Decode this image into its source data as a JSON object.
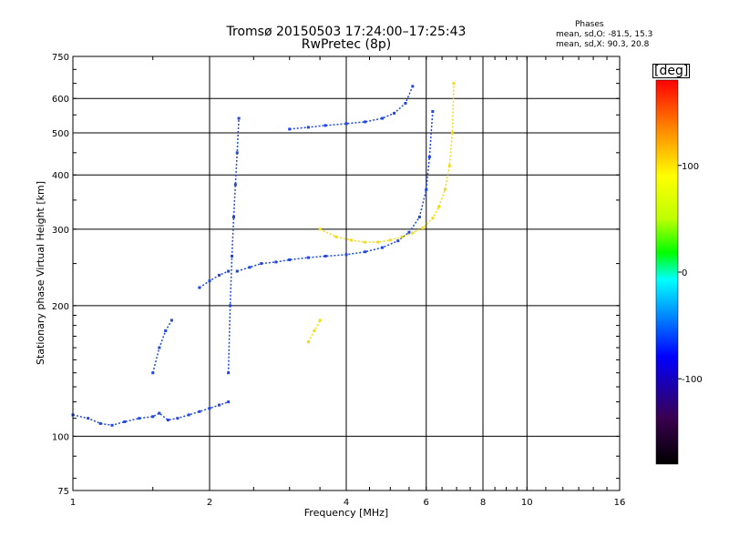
{
  "header": {
    "title_line1": "Tromsø 20150503 17:24:00–17:25:43",
    "title_line2": "RwPretec (8p)",
    "phases_title": "Phases",
    "phases_line1": "mean, sd,O: -81.5, 15.3",
    "phases_line2": "mean, sd,X:  90.3, 20.8"
  },
  "chart_data": {
    "type": "scatter",
    "title": "Tromsø 20150503 17:24:00–17:25:43",
    "subtitle": "RwPretec (8p)",
    "xlabel": "Frequency [MHz]",
    "ylabel": "Stationary phase Virtual Height [km]",
    "x_scale": "log",
    "y_scale": "log",
    "xlim": [
      1,
      16
    ],
    "ylim": [
      75,
      750
    ],
    "x_ticks": [
      1,
      2,
      4,
      6,
      8,
      10,
      16
    ],
    "x_tick_labels": [
      "1",
      "2",
      "4",
      "6",
      "8",
      "10",
      "16"
    ],
    "y_ticks": [
      75,
      100,
      200,
      300,
      400,
      500,
      600,
      750
    ],
    "y_tick_labels": [
      "75",
      "100",
      "200",
      "300",
      "400",
      "500",
      "600",
      "750"
    ],
    "grid": true,
    "colorbar": {
      "label": "[deg]",
      "range": [
        -180,
        180
      ],
      "ticks": [
        -100,
        0,
        100
      ],
      "tick_labels": [
        "-100",
        "0",
        "100"
      ],
      "colors": [
        "#000000",
        "#3a0050",
        "#0000ff",
        "#0080ff",
        "#00ffff",
        "#00ff00",
        "#c0ff00",
        "#ffff00",
        "#ff8000",
        "#ff0000"
      ]
    },
    "series": [
      {
        "name": "O",
        "color": "#1e46e6",
        "segments": [
          {
            "x": [
              1.0,
              1.08,
              1.15,
              1.22,
              1.3,
              1.4,
              1.5,
              1.55,
              1.62,
              1.7,
              1.8,
              1.9,
              2.0,
              2.1,
              2.2
            ],
            "y": [
              112,
              110,
              107,
              106,
              108,
              110,
              111,
              113,
              109,
              110,
              112,
              114,
              116,
              118,
              120
            ]
          },
          {
            "x": [
              2.3,
              2.45,
              2.6,
              2.8,
              3.0,
              3.3,
              3.6,
              4.0,
              4.4,
              4.8,
              5.2,
              5.5,
              5.8,
              6.0,
              6.1,
              6.2
            ],
            "y": [
              240,
              245,
              250,
              252,
              255,
              258,
              260,
              262,
              266,
              272,
              282,
              295,
              320,
              370,
              440,
              560
            ]
          },
          {
            "x": [
              3.0,
              3.3,
              3.6,
              4.0,
              4.4,
              4.8,
              5.1,
              5.4,
              5.6
            ],
            "y": [
              510,
              515,
              520,
              525,
              530,
              540,
              555,
              585,
              640
            ]
          },
          {
            "x": [
              2.2,
              2.22,
              2.24,
              2.26,
              2.28,
              2.3,
              2.32
            ],
            "y": [
              140,
              200,
              260,
              320,
              380,
              450,
              540
            ]
          },
          {
            "x": [
              1.5,
              1.55,
              1.6,
              1.65
            ],
            "y": [
              140,
              160,
              175,
              185
            ]
          },
          {
            "x": [
              1.9,
              2.0,
              2.1,
              2.2
            ],
            "y": [
              220,
              228,
              235,
              240
            ]
          }
        ]
      },
      {
        "name": "X",
        "color": "#f0dc14",
        "segments": [
          {
            "x": [
              3.5,
              3.8,
              4.1,
              4.4,
              4.7,
              5.0,
              5.3,
              5.6,
              5.9,
              6.2,
              6.4,
              6.6,
              6.75,
              6.85,
              6.9
            ],
            "y": [
              300,
              288,
              283,
              280,
              280,
              283,
              288,
              294,
              302,
              318,
              338,
              370,
              420,
              500,
              650
            ]
          },
          {
            "x": [
              3.3,
              3.4,
              3.5
            ],
            "y": [
              165,
              175,
              185
            ]
          }
        ]
      }
    ]
  }
}
